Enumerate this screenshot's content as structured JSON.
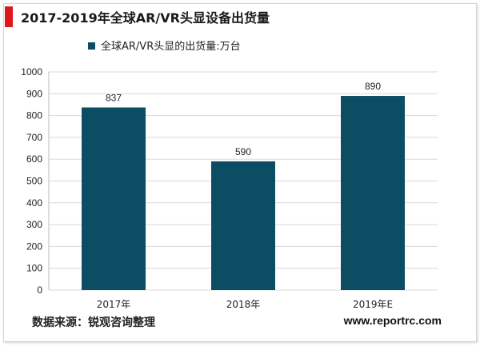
{
  "title": "2017-2019年全球AR/VR头显设备出货量",
  "source": "数据来源：锐观咨询整理",
  "website": "www.reportrc.com",
  "colors": {
    "accent": "#e0161c",
    "bar": "#0c4d63",
    "grid": "#d9d9d9"
  },
  "chart_data": {
    "type": "bar",
    "categories": [
      "2017年",
      "2018年",
      "2019年E"
    ],
    "series": [
      {
        "name": "全球AR/VR头显的出货量:万台",
        "values": [
          837,
          590,
          890
        ]
      }
    ],
    "data_labels": [
      "837",
      "590",
      "890"
    ],
    "yticks": [
      "0",
      "100",
      "200",
      "300",
      "400",
      "500",
      "600",
      "700",
      "800",
      "900",
      "1000"
    ],
    "ylim": [
      0,
      1000
    ],
    "grid": true,
    "legend_position": "top-center"
  }
}
